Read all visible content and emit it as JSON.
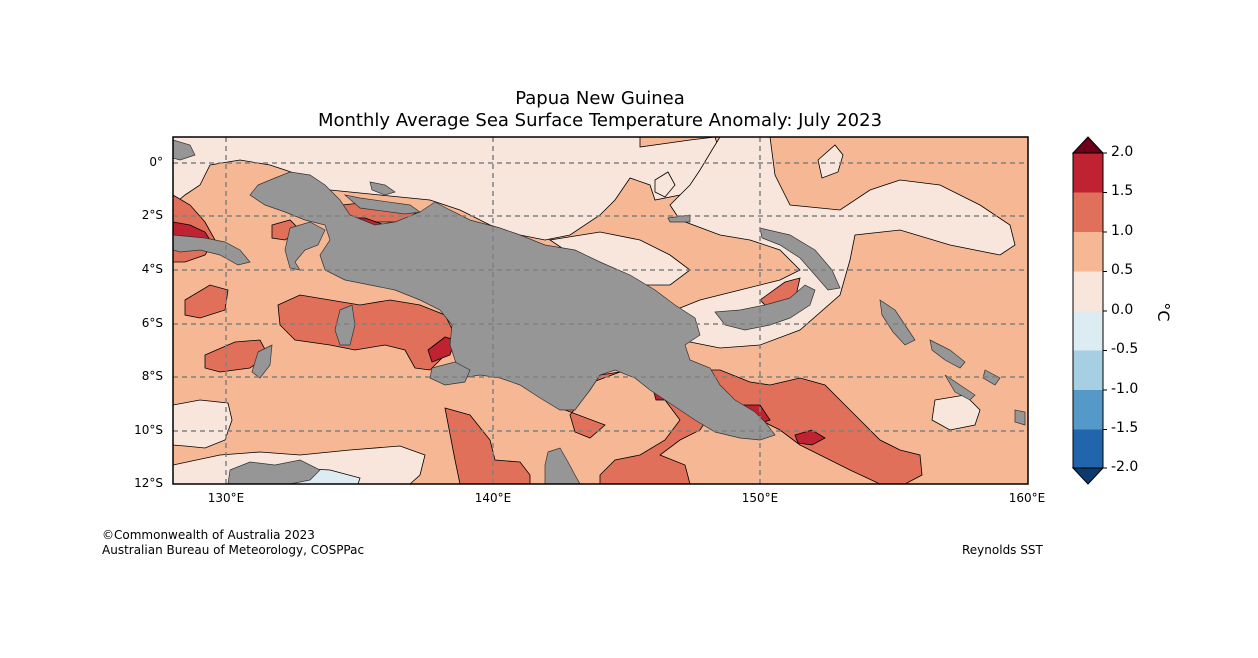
{
  "title": {
    "line1": "Papua New Guinea",
    "line2": "Monthly Average Sea Surface Temperature Anomaly: July 2023"
  },
  "map": {
    "lat_labels": [
      "0°",
      "2°S",
      "4°S",
      "6°S",
      "8°S",
      "10°S",
      "12°S"
    ],
    "lon_labels": [
      "130°E",
      "140°E",
      "150°E",
      "160°E"
    ],
    "colors": {
      "land": "#969696",
      "sea_0_05": "#f8e6dc",
      "sea_05_10": "#f5b794",
      "sea_10_15": "#e0705a",
      "sea_15_20": "#bf2230",
      "sea_over_20": "#6d0019",
      "sea_neg_05_0": "#ddebf3",
      "grid": "#808080"
    }
  },
  "colorbar": {
    "unit": "°C",
    "tick_labels": [
      "2.0",
      "1.5",
      "1.0",
      "0.5",
      "0.0",
      "-0.5",
      "-1.0",
      "-1.5",
      "-2.0"
    ],
    "colors": [
      "#6d0019",
      "#bf2230",
      "#e0705a",
      "#f5b794",
      "#f8e6dc",
      "#ddebf3",
      "#a7cfe4",
      "#5499c7",
      "#2166ac",
      "#0c3a6e"
    ]
  },
  "credits": {
    "copyright": "©Commonwealth of Australia 2023",
    "agency": "Australian Bureau of Meteorology, COSPPac",
    "source": "Reynolds SST"
  }
}
